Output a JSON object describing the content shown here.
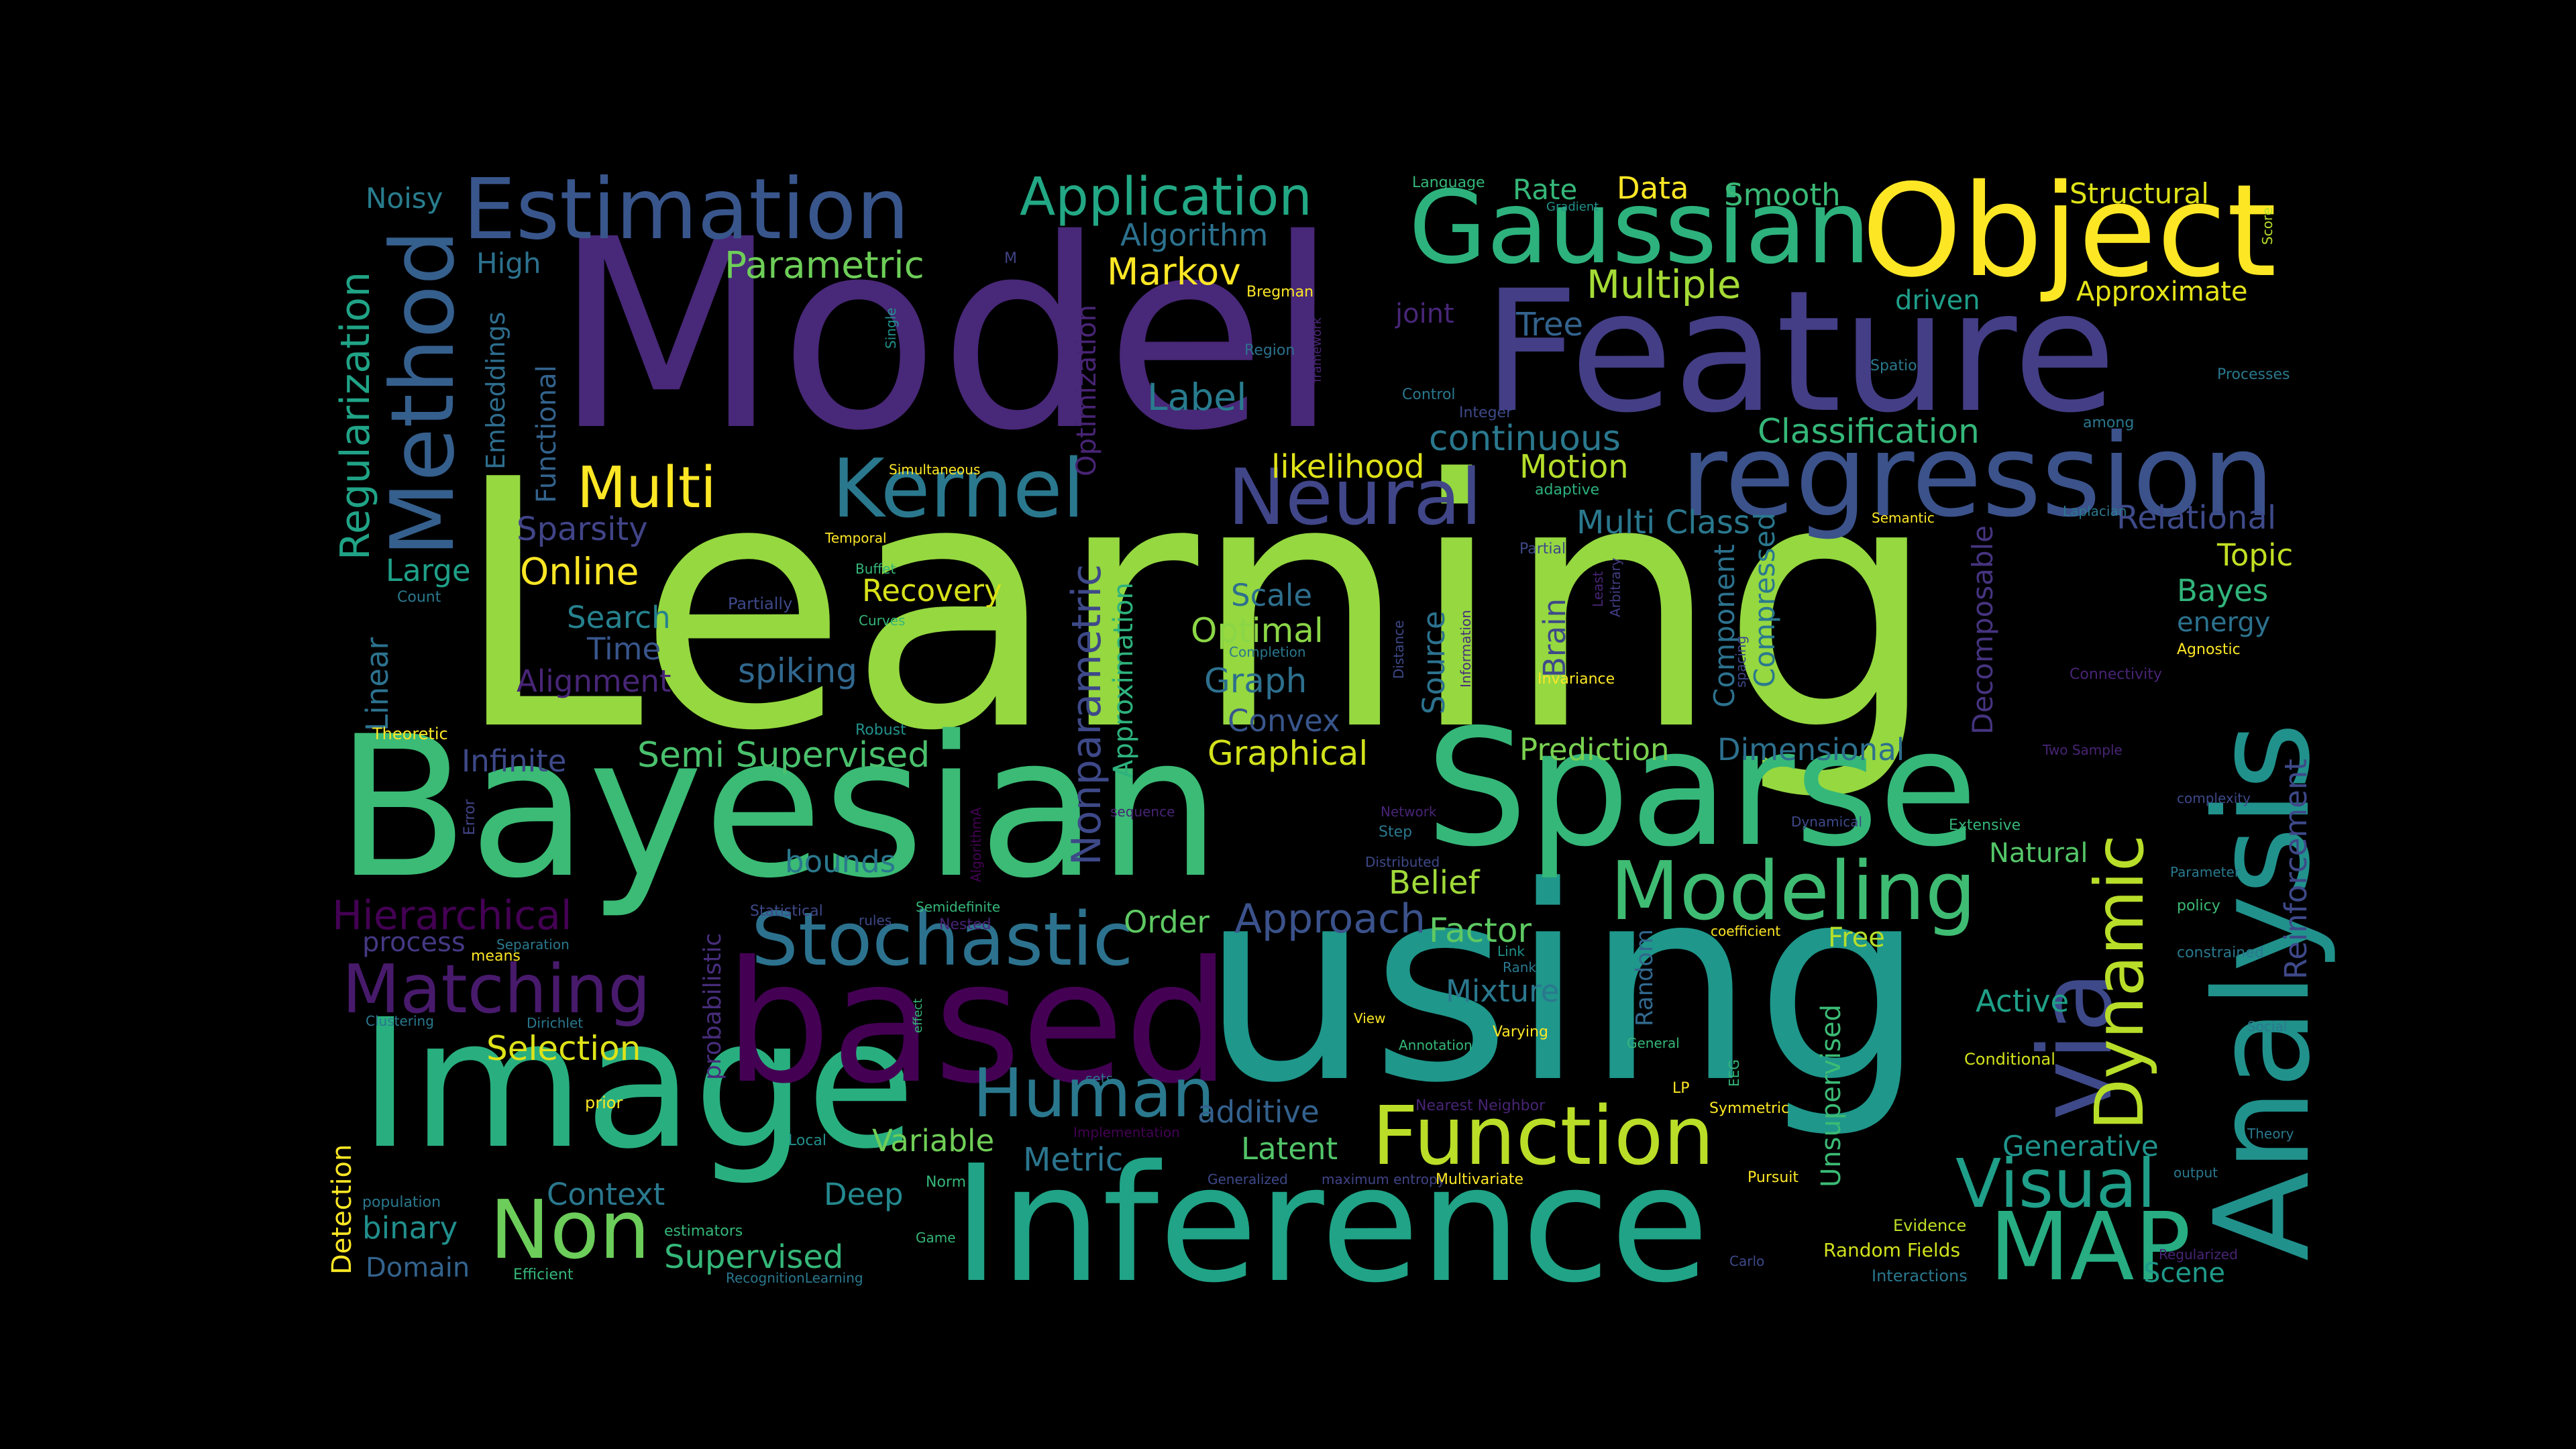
{
  "background_color": "#000000",
  "words": [
    {
      "text": "Learning",
      "color": "#95d840"
    },
    {
      "text": "Model",
      "color": "#482878"
    },
    {
      "text": "Feature",
      "color": "#433e85"
    },
    {
      "text": "using",
      "color": "#1f978b"
    },
    {
      "text": "Bayesian",
      "color": "#3bbb75"
    },
    {
      "text": "Image",
      "color": "#29af7f"
    },
    {
      "text": "Inference",
      "color": "#20a386"
    },
    {
      "text": "based",
      "color": "#440154"
    },
    {
      "text": "Sparse",
      "color": "#35b779"
    },
    {
      "text": "regression",
      "color": "#3b528b"
    },
    {
      "text": "Object",
      "color": "#fde725"
    },
    {
      "text": "Gaussian",
      "color": "#2db27d"
    },
    {
      "text": "Analysis",
      "color": "#21918c"
    },
    {
      "text": "Estimation",
      "color": "#39568c"
    },
    {
      "text": "Method",
      "color": "#355f8d"
    },
    {
      "text": "Stochastic",
      "color": "#2c728e"
    },
    {
      "text": "Function",
      "color": "#bade28"
    },
    {
      "text": "Kernel",
      "color": "#2a788e"
    },
    {
      "text": "Neural",
      "color": "#404688"
    },
    {
      "text": "Modeling",
      "color": "#3fbc73"
    },
    {
      "text": "via",
      "color": "#3e4989"
    },
    {
      "text": "MAP",
      "color": "#27ad81"
    },
    {
      "text": "Non",
      "color": "#6ccd5a"
    },
    {
      "text": "Human",
      "color": "#2a788e"
    },
    {
      "text": "Visual",
      "color": "#1f9e89"
    },
    {
      "text": "Matching",
      "color": "#481a6c"
    },
    {
      "text": "Dynamic",
      "color": "#b8de29"
    },
    {
      "text": "Application",
      "color": "#22a884"
    },
    {
      "text": "Multi",
      "color": "#fde725"
    },
    {
      "text": "Regularization",
      "color": "#20a386"
    },
    {
      "text": "Reinforcement",
      "color": "#3e4989"
    },
    {
      "text": "Hierarchical",
      "color": "#440154"
    },
    {
      "text": "Approach",
      "color": "#3b528b"
    },
    {
      "text": "Parametric",
      "color": "#6ece58"
    },
    {
      "text": "Nonparametric",
      "color": "#3e4989"
    },
    {
      "text": "Markov",
      "color": "#fde725"
    },
    {
      "text": "Algorithm",
      "color": "#2c728e"
    },
    {
      "text": "Multiple",
      "color": "#a5db36"
    },
    {
      "text": "Tree",
      "color": "#33638d"
    },
    {
      "text": "Label",
      "color": "#287c8e"
    },
    {
      "text": "continuous",
      "color": "#2a788e"
    },
    {
      "text": "likelihood",
      "color": "#dfe318"
    },
    {
      "text": "Motion",
      "color": "#b5de2b"
    },
    {
      "text": "Classification",
      "color": "#35b779"
    },
    {
      "text": "Multi Class",
      "color": "#2a788e"
    },
    {
      "text": "Relational",
      "color": "#3e4a89"
    },
    {
      "text": "Online",
      "color": "#fde725"
    },
    {
      "text": "Sparsity",
      "color": "#414487"
    },
    {
      "text": "Large",
      "color": "#1fa088"
    },
    {
      "text": "Search",
      "color": "#26828e"
    },
    {
      "text": "Time",
      "color": "#39568c"
    },
    {
      "text": "Alignment",
      "color": "#482677"
    },
    {
      "text": "spiking",
      "color": "#31688e"
    },
    {
      "text": "Recovery",
      "color": "#d8e219"
    },
    {
      "text": "Optimal",
      "color": "#8bd646"
    },
    {
      "text": "Scale",
      "color": "#2e6f8e"
    },
    {
      "text": "Graph",
      "color": "#2d708e"
    },
    {
      "text": "Convex",
      "color": "#39568c"
    },
    {
      "text": "Graphical",
      "color": "#d2e21b"
    },
    {
      "text": "Semi Supervised",
      "color": "#4ac16d"
    },
    {
      "text": "Infinite",
      "color": "#3e4989"
    },
    {
      "text": "Prediction",
      "color": "#7ad151"
    },
    {
      "text": "Dimensional",
      "color": "#2d708e"
    },
    {
      "text": "Belief",
      "color": "#a0da39"
    },
    {
      "text": "Factor",
      "color": "#5ec962"
    },
    {
      "text": "Mixture",
      "color": "#2a788e"
    },
    {
      "text": "Order",
      "color": "#5ec962"
    },
    {
      "text": "bounds",
      "color": "#2a788e"
    },
    {
      "text": "process",
      "color": "#443983"
    },
    {
      "text": "Selection",
      "color": "#dfe318"
    },
    {
      "text": "Active",
      "color": "#1fa088"
    },
    {
      "text": "Natural",
      "color": "#54c568"
    },
    {
      "text": "Generative",
      "color": "#1f948c"
    },
    {
      "text": "Latent",
      "color": "#52c569"
    },
    {
      "text": "additive",
      "color": "#34618d"
    },
    {
      "text": "Variable",
      "color": "#70cf57"
    },
    {
      "text": "Metric",
      "color": "#2b758e"
    },
    {
      "text": "Context",
      "color": "#2a788e"
    },
    {
      "text": "Deep",
      "color": "#23898e"
    },
    {
      "text": "binary",
      "color": "#218f8d"
    },
    {
      "text": "Domain",
      "color": "#33638d"
    },
    {
      "text": "Supervised",
      "color": "#35b779"
    },
    {
      "text": "Detection",
      "color": "#fde725"
    },
    {
      "text": "Scene",
      "color": "#1f9a8a"
    },
    {
      "text": "Bayes",
      "color": "#31b57b"
    },
    {
      "text": "energy",
      "color": "#2c728e"
    },
    {
      "text": "Topic",
      "color": "#c2df23"
    },
    {
      "text": "Structural",
      "color": "#dfe318"
    },
    {
      "text": "Approximate",
      "color": "#e5e419"
    },
    {
      "text": "driven",
      "color": "#1f9e89"
    },
    {
      "text": "Smooth",
      "color": "#3aba76"
    },
    {
      "text": "Data",
      "color": "#fde725"
    },
    {
      "text": "Rate",
      "color": "#35b779"
    },
    {
      "text": "Noisy",
      "color": "#287d8e"
    },
    {
      "text": "High",
      "color": "#2c728e"
    },
    {
      "text": "Embeddings",
      "color": "#2e6e8e"
    },
    {
      "text": "Functional",
      "color": "#33638d"
    },
    {
      "text": "Linear",
      "color": "#2c728e"
    },
    {
      "text": "Optimization",
      "color": "#482475"
    },
    {
      "text": "Approximation",
      "color": "#2db27d"
    },
    {
      "text": "Brain",
      "color": "#3e4989"
    },
    {
      "text": "Source",
      "color": "#2c728e"
    },
    {
      "text": "Component",
      "color": "#2c728e"
    },
    {
      "text": "Compressed",
      "color": "#2a788e"
    },
    {
      "text": "Decomposable",
      "color": "#463480"
    },
    {
      "text": "Unsupervised",
      "color": "#3bbb75"
    },
    {
      "text": "Random",
      "color": "#31688e"
    },
    {
      "text": "Free",
      "color": "#b5de2b"
    },
    {
      "text": "probabilistic",
      "color": "#472d7b"
    },
    {
      "text": "Random Fields",
      "color": "#d0e11c"
    },
    {
      "text": "Evidence",
      "color": "#bddf26"
    },
    {
      "text": "Interactions",
      "color": "#2a788e"
    },
    {
      "text": "Conditional",
      "color": "#d2e21b"
    },
    {
      "text": "joint",
      "color": "#482677"
    },
    {
      "text": "Language",
      "color": "#35b779"
    },
    {
      "text": "Gradient",
      "color": "#21918c"
    },
    {
      "text": "Bregman",
      "color": "#fde725"
    },
    {
      "text": "Region",
      "color": "#2c728e"
    },
    {
      "text": "framework",
      "color": "#482475"
    },
    {
      "text": "Control",
      "color": "#2a788e"
    },
    {
      "text": "Integer",
      "color": "#3e4989"
    },
    {
      "text": "adaptive",
      "color": "#2db27d"
    },
    {
      "text": "Partial",
      "color": "#3e4989"
    },
    {
      "text": "Least",
      "color": "#482475"
    },
    {
      "text": "Arbitrary",
      "color": "#433e85"
    },
    {
      "text": "Spatio",
      "color": "#2a788e"
    },
    {
      "text": "among",
      "color": "#2a788e"
    },
    {
      "text": "Processes",
      "color": "#2a788e"
    },
    {
      "text": "Semantic",
      "color": "#fde725"
    },
    {
      "text": "Laplacian",
      "color": "#2a788e"
    },
    {
      "text": "Agnostic",
      "color": "#fde725"
    },
    {
      "text": "Connectivity",
      "color": "#482475"
    },
    {
      "text": "spacing",
      "color": "#3e4989"
    },
    {
      "text": "Invariance",
      "color": "#fde725"
    },
    {
      "text": "Information",
      "color": "#472d7b"
    },
    {
      "text": "Distance",
      "color": "#3e4989"
    },
    {
      "text": "Completion",
      "color": "#2a788e"
    },
    {
      "text": "Partially",
      "color": "#3e4989"
    },
    {
      "text": "Buffet",
      "color": "#35b779"
    },
    {
      "text": "Curves",
      "color": "#35b779"
    },
    {
      "text": "Temporal",
      "color": "#fde725"
    },
    {
      "text": "Simultaneous",
      "color": "#fde725"
    },
    {
      "text": "Single",
      "color": "#21918c"
    },
    {
      "text": "M",
      "color": "#414487"
    },
    {
      "text": "Score",
      "color": "#b5de2b"
    },
    {
      "text": "Count",
      "color": "#2a788e"
    },
    {
      "text": "Theoretic",
      "color": "#fde725"
    },
    {
      "text": "Robust",
      "color": "#21918c"
    },
    {
      "text": "Error",
      "color": "#414487"
    },
    {
      "text": "AlgorithmA",
      "color": "#440154"
    },
    {
      "text": "Network",
      "color": "#482475"
    },
    {
      "text": "Step",
      "color": "#2a788e"
    },
    {
      "text": "Distributed",
      "color": "#3e4989"
    },
    {
      "text": "Dynamical",
      "color": "#3e4989"
    },
    {
      "text": "Extensive",
      "color": "#35b779"
    },
    {
      "text": "complexity",
      "color": "#3e4989"
    },
    {
      "text": "Two Sample",
      "color": "#482475"
    },
    {
      "text": "Parameter",
      "color": "#2a788e"
    },
    {
      "text": "policy",
      "color": "#3bbb75"
    },
    {
      "text": "constrained",
      "color": "#2a788e"
    },
    {
      "text": "Social",
      "color": "#2a788e"
    },
    {
      "text": "Theory",
      "color": "#2a788e"
    },
    {
      "text": "output",
      "color": "#2a788e"
    },
    {
      "text": "Regularized",
      "color": "#482475"
    },
    {
      "text": "Carlo",
      "color": "#3e4989"
    },
    {
      "text": "Pursuit",
      "color": "#fde725"
    },
    {
      "text": "Symmetric",
      "color": "#fde725"
    },
    {
      "text": "LP",
      "color": "#fde725"
    },
    {
      "text": "EEG",
      "color": "#35b779"
    },
    {
      "text": "General",
      "color": "#35b779"
    },
    {
      "text": "Varying",
      "color": "#fde725"
    },
    {
      "text": "Annotation",
      "color": "#35b779"
    },
    {
      "text": "View",
      "color": "#fde725"
    },
    {
      "text": "Rank",
      "color": "#2a788e"
    },
    {
      "text": "Link",
      "color": "#21918c"
    },
    {
      "text": "coefficient",
      "color": "#fde725"
    },
    {
      "text": "Nearest Neighbor",
      "color": "#482475"
    },
    {
      "text": "Implementation",
      "color": "#440154"
    },
    {
      "text": "Generalized",
      "color": "#3e4989"
    },
    {
      "text": "maximum entropy",
      "color": "#414487"
    },
    {
      "text": "Multivariate",
      "color": "#fde725"
    },
    {
      "text": "Norm",
      "color": "#35b779"
    },
    {
      "text": "Game",
      "color": "#35b779"
    },
    {
      "text": "Local",
      "color": "#21918c"
    },
    {
      "text": "sets",
      "color": "#2a788e"
    },
    {
      "text": "effect",
      "color": "#35b779"
    },
    {
      "text": "Nested",
      "color": "#482475"
    },
    {
      "text": "rules",
      "color": "#3e4989"
    },
    {
      "text": "Semidefinite",
      "color": "#35b779"
    },
    {
      "text": "Statistical",
      "color": "#3e4989"
    },
    {
      "text": "sequence",
      "color": "#482475"
    },
    {
      "text": "Separation",
      "color": "#2a788e"
    },
    {
      "text": "means",
      "color": "#fde725"
    },
    {
      "text": "Clustering",
      "color": "#2a788e"
    },
    {
      "text": "Dirichlet",
      "color": "#2a788e"
    },
    {
      "text": "prior",
      "color": "#fde725"
    },
    {
      "text": "population",
      "color": "#2a788e"
    },
    {
      "text": "estimators",
      "color": "#35b779"
    },
    {
      "text": "Efficient",
      "color": "#35b779"
    },
    {
      "text": "RecognitionLearning",
      "color": "#2a788e"
    }
  ]
}
